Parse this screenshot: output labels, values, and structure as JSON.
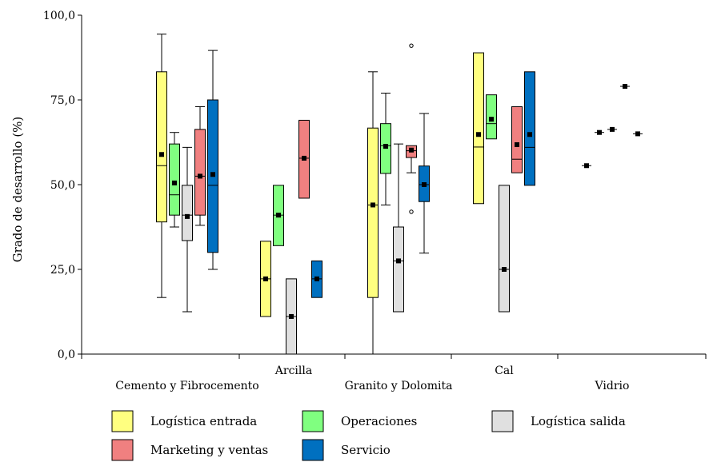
{
  "chart_data": {
    "type": "box",
    "ylabel": "Grado de desarrollo (%)",
    "ylim": [
      0,
      100
    ],
    "yticks": [
      0,
      25,
      50,
      75,
      100
    ],
    "ytick_labels": [
      "0,0",
      "25,0",
      "50,0",
      "75,0",
      "100,0"
    ],
    "categories": [
      "Cemento y Fibrocemento",
      "Arcilla",
      "Granito y Dolomita",
      "Cal",
      "Vidrio"
    ],
    "series": [
      {
        "name": "Logística entrada",
        "color": "#ffff80",
        "boxes": [
          {
            "category": "Cemento y Fibrocemento",
            "whisker_low": 16.7,
            "q1": 39.0,
            "median": 55.6,
            "q3": 83.3,
            "whisker_high": 94.4,
            "mean": 58.9
          },
          {
            "category": "Arcilla",
            "whisker_low": 11.1,
            "q1": 11.1,
            "median": 22.2,
            "q3": 33.3,
            "whisker_high": 33.3,
            "mean": 22.2
          },
          {
            "category": "Granito y Dolomita",
            "whisker_low": 0.0,
            "q1": 16.7,
            "median": 44.0,
            "q3": 66.7,
            "whisker_high": 83.3,
            "mean": 44.0
          },
          {
            "category": "Cal",
            "whisker_low": 44.4,
            "q1": 44.4,
            "median": 61.1,
            "q3": 88.9,
            "whisker_high": 88.9,
            "mean": 64.8
          },
          {
            "category": "Vidrio",
            "whisker_low": 55.6,
            "q1": 55.6,
            "median": 55.6,
            "q3": 55.6,
            "whisker_high": 55.6,
            "mean": 55.6
          }
        ]
      },
      {
        "name": "Operaciones",
        "color": "#80ff80",
        "boxes": [
          {
            "category": "Cemento y Fibrocemento",
            "whisker_low": 37.5,
            "q1": 41.0,
            "median": 47.0,
            "q3": 62.0,
            "whisker_high": 65.4,
            "mean": 50.5
          },
          {
            "category": "Arcilla",
            "whisker_low": 32.0,
            "q1": 32.0,
            "median": 41.0,
            "q3": 49.8,
            "whisker_high": 49.8,
            "mean": 41.0
          },
          {
            "category": "Granito y Dolomita",
            "whisker_low": 44.0,
            "q1": 53.3,
            "median": 61.5,
            "q3": 68.0,
            "whisker_high": 77.0,
            "mean": 61.3
          },
          {
            "category": "Cal",
            "whisker_low": 63.5,
            "q1": 63.5,
            "median": 68.0,
            "q3": 76.5,
            "whisker_high": 76.5,
            "mean": 69.3
          },
          {
            "category": "Vidrio",
            "whisker_low": 65.4,
            "q1": 65.4,
            "median": 65.4,
            "q3": 65.4,
            "whisker_high": 65.4,
            "mean": 65.4
          }
        ]
      },
      {
        "name": "Logística salida",
        "color": "#e0e0e0",
        "boxes": [
          {
            "category": "Cemento y Fibrocemento",
            "whisker_low": 12.5,
            "q1": 33.5,
            "median": 41.0,
            "q3": 49.8,
            "whisker_high": 61.0,
            "mean": 40.6
          },
          {
            "category": "Arcilla",
            "whisker_low": 0.0,
            "q1": 0.0,
            "median": 11.1,
            "q3": 22.2,
            "whisker_high": 22.2,
            "mean": 11.1
          },
          {
            "category": "Granito y Dolomita",
            "whisker_low": 12.5,
            "q1": 12.5,
            "median": 27.5,
            "q3": 37.5,
            "whisker_high": 62.0,
            "mean": 27.5
          },
          {
            "category": "Cal",
            "whisker_low": 12.5,
            "q1": 12.5,
            "median": 25.0,
            "q3": 49.8,
            "whisker_high": 49.8,
            "mean": 25.0
          },
          {
            "category": "Vidrio",
            "whisker_low": 66.3,
            "q1": 66.3,
            "median": 66.3,
            "q3": 66.3,
            "whisker_high": 66.3,
            "mean": 66.3
          }
        ]
      },
      {
        "name": "Marketing y ventas",
        "color": "#f08080",
        "boxes": [
          {
            "category": "Cemento y Fibrocemento",
            "whisker_low": 38.0,
            "q1": 41.0,
            "median": 52.5,
            "q3": 66.3,
            "whisker_high": 73.0,
            "mean": 52.5
          },
          {
            "category": "Arcilla",
            "whisker_low": 46.0,
            "q1": 46.0,
            "median": 57.8,
            "q3": 69.0,
            "whisker_high": 69.0,
            "mean": 57.8
          },
          {
            "category": "Granito y Dolomita",
            "whisker_low": 53.5,
            "q1": 58.0,
            "median": 60.0,
            "q3": 61.5,
            "whisker_high": 61.5,
            "mean": 60.2,
            "outliers": [
              91.0,
              42.0
            ]
          },
          {
            "category": "Cal",
            "whisker_low": 53.5,
            "q1": 53.5,
            "median": 57.5,
            "q3": 73.0,
            "whisker_high": 73.0,
            "mean": 61.8
          },
          {
            "category": "Vidrio",
            "whisker_low": 79.0,
            "q1": 79.0,
            "median": 79.0,
            "q3": 79.0,
            "whisker_high": 79.0,
            "mean": 79.0
          }
        ]
      },
      {
        "name": "Servicio",
        "color": "#0070c0",
        "boxes": [
          {
            "category": "Cemento y Fibrocemento",
            "whisker_low": 25.0,
            "q1": 30.0,
            "median": 49.8,
            "q3": 75.0,
            "whisker_high": 89.6,
            "mean": 53.0
          },
          {
            "category": "Arcilla",
            "whisker_low": 16.7,
            "q1": 16.7,
            "median": 22.2,
            "q3": 27.5,
            "whisker_high": 27.5,
            "mean": 22.2
          },
          {
            "category": "Granito y Dolomita",
            "whisker_low": 29.8,
            "q1": 45.0,
            "median": 50.0,
            "q3": 55.5,
            "whisker_high": 71.0,
            "mean": 50.0
          },
          {
            "category": "Cal",
            "whisker_low": 49.8,
            "q1": 49.8,
            "median": 61.0,
            "q3": 83.3,
            "whisker_high": 83.3,
            "mean": 64.8
          },
          {
            "category": "Vidrio",
            "whisker_low": 65.0,
            "q1": 65.0,
            "median": 65.0,
            "q3": 65.0,
            "whisker_high": 65.0,
            "mean": 65.0
          }
        ]
      }
    ],
    "legend": {
      "placement": "bottom",
      "columns": 3
    }
  }
}
